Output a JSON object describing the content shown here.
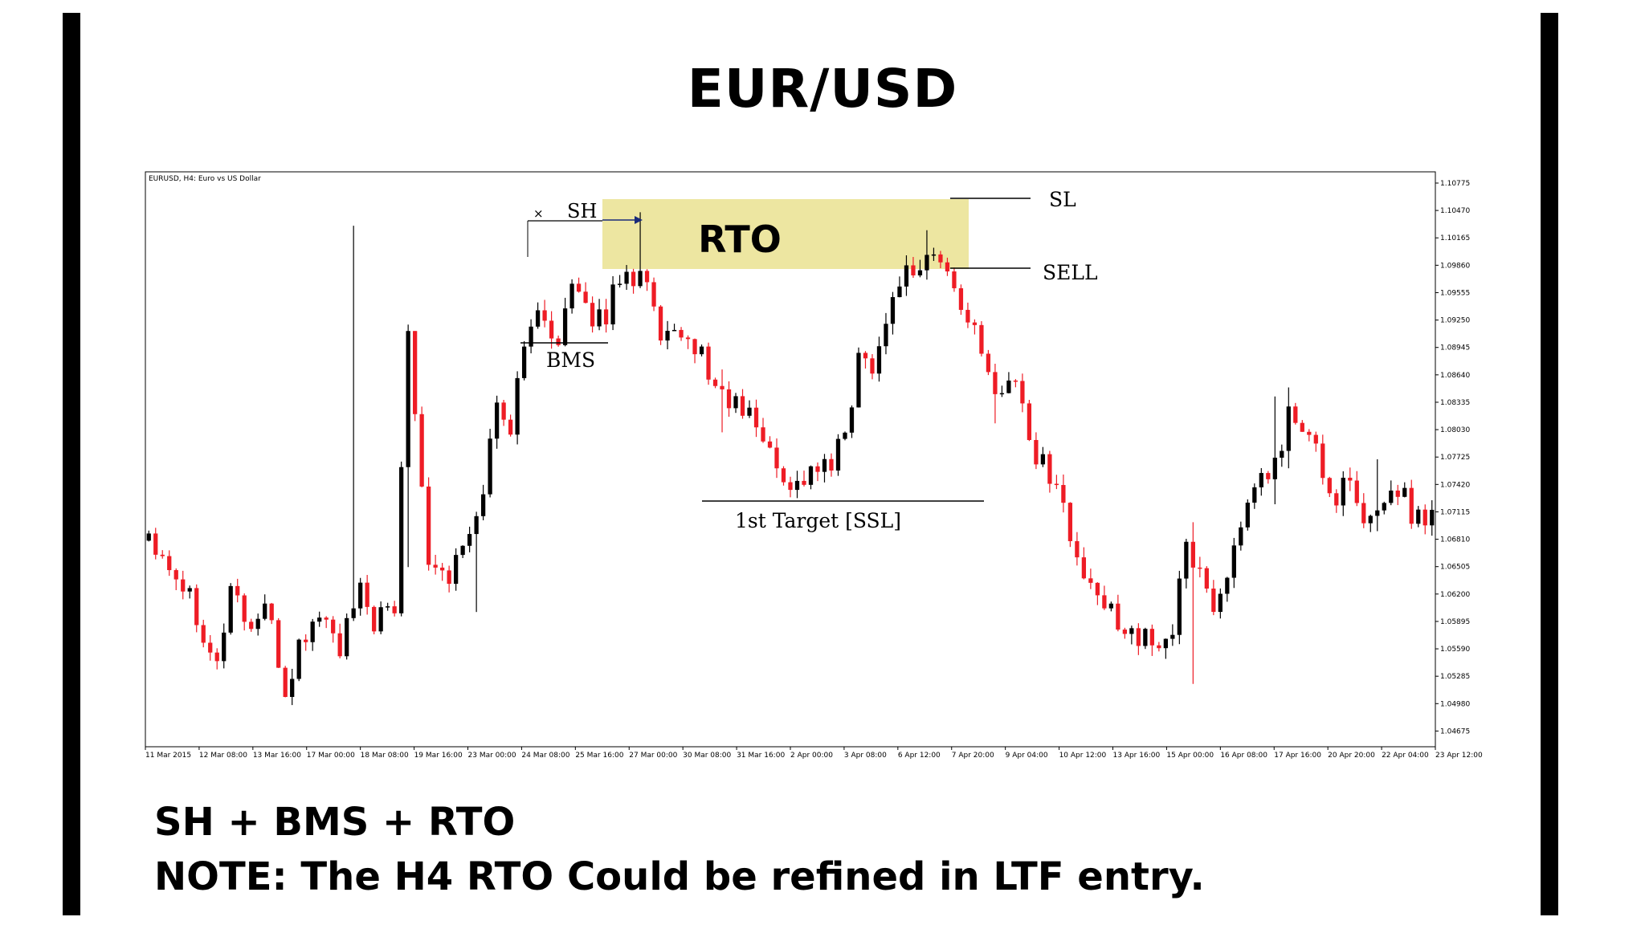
{
  "title": "EUR/USD",
  "captions": {
    "line1": "SH + BMS + RTO",
    "line2": "NOTE: The H4 RTO Could be refined in LTF entry."
  },
  "colors": {
    "bull": "#000000",
    "bear": "#ee1c25",
    "zone": "#ede6a1",
    "frame": "#000000"
  },
  "chart_data": {
    "type": "candlestick",
    "header": "EURUSD, H4:  Euro vs US Dollar",
    "ylim": [
      1.045,
      1.109
    ],
    "yticks": [
      "1.10775",
      "1.10470",
      "1.10165",
      "1.09860",
      "1.09555",
      "1.09250",
      "1.08945",
      "1.08640",
      "1.08335",
      "1.08030",
      "1.07725",
      "1.07420",
      "1.07115",
      "1.06810",
      "1.06505",
      "1.06200",
      "1.05895",
      "1.05590",
      "1.05285",
      "1.04980",
      "1.04675"
    ],
    "xticks": [
      "11 Mar 2015",
      "12 Mar 08:00",
      "13 Mar 16:00",
      "17 Mar 00:00",
      "18 Mar 08:00",
      "19 Mar 16:00",
      "23 Mar 00:00",
      "24 Mar 08:00",
      "25 Mar 16:00",
      "27 Mar 00:00",
      "30 Mar 08:00",
      "31 Mar 16:00",
      "2 Apr 00:00",
      "3 Apr 08:00",
      "6 Apr 12:00",
      "7 Apr 20:00",
      "9 Apr 04:00",
      "10 Apr 12:00",
      "13 Apr 16:00",
      "15 Apr 00:00",
      "16 Apr 08:00",
      "17 Apr 16:00",
      "20 Apr 20:00",
      "22 Apr 04:00",
      "23 Apr 12:00"
    ],
    "anchors": [
      [
        0,
        1.069
      ],
      [
        6,
        1.062
      ],
      [
        10,
        1.054
      ],
      [
        12,
        1.063
      ],
      [
        15,
        1.058
      ],
      [
        17,
        1.061
      ],
      [
        20,
        1.051
      ],
      [
        22,
        1.056
      ],
      [
        25,
        1.06
      ],
      [
        28,
        1.056
      ],
      [
        31,
        1.062
      ],
      [
        33,
        1.059
      ],
      [
        36,
        1.06
      ],
      [
        38,
        1.092
      ],
      [
        41,
        1.066
      ],
      [
        44,
        1.064
      ],
      [
        48,
        1.07
      ],
      [
        51,
        1.083
      ],
      [
        53,
        1.081
      ],
      [
        56,
        1.093
      ],
      [
        60,
        1.091
      ],
      [
        62,
        1.096
      ],
      [
        64,
        1.093
      ],
      [
        67,
        1.093
      ],
      [
        69,
        1.098
      ],
      [
        71,
        1.097
      ],
      [
        72,
        1.099
      ],
      [
        73,
        1.096
      ],
      [
        75,
        1.09
      ],
      [
        78,
        1.09
      ],
      [
        80,
        1.09
      ],
      [
        83,
        1.085
      ],
      [
        86,
        1.083
      ],
      [
        89,
        1.081
      ],
      [
        92,
        1.076
      ],
      [
        95,
        1.074
      ],
      [
        97,
        1.076
      ],
      [
        100,
        1.076
      ],
      [
        102,
        1.08
      ],
      [
        104,
        1.088
      ],
      [
        106,
        1.088
      ],
      [
        108,
        1.092
      ],
      [
        110,
        1.0975
      ],
      [
        113,
        1.0985
      ],
      [
        115,
        1.1
      ],
      [
        118,
        1.096
      ],
      [
        120,
        1.093
      ],
      [
        123,
        1.086
      ],
      [
        125,
        1.085
      ],
      [
        127,
        1.086
      ],
      [
        130,
        1.077
      ],
      [
        133,
        1.075
      ],
      [
        135,
        1.068
      ],
      [
        138,
        1.062
      ],
      [
        141,
        1.06
      ],
      [
        144,
        1.058
      ],
      [
        147,
        1.056
      ],
      [
        150,
        1.058
      ],
      [
        152,
        1.067
      ],
      [
        154,
        1.065
      ],
      [
        156,
        1.06
      ],
      [
        158,
        1.065
      ],
      [
        160,
        1.068
      ],
      [
        162,
        1.074
      ],
      [
        165,
        1.076
      ],
      [
        167,
        1.082
      ],
      [
        169,
        1.08
      ],
      [
        171,
        1.078
      ],
      [
        173,
        1.073
      ],
      [
        176,
        1.074
      ],
      [
        178,
        1.069
      ],
      [
        180,
        1.072
      ],
      [
        183,
        1.074
      ],
      [
        185,
        1.071
      ],
      [
        188,
        1.071
      ]
    ],
    "spikes": [
      [
        30,
        1.103,
        1.059
      ],
      [
        38,
        1.092,
        1.065
      ],
      [
        48,
        1.066,
        1.06
      ],
      [
        72,
        1.1045,
        1.098
      ],
      [
        84,
        1.087,
        1.08
      ],
      [
        114,
        1.1025,
        1.097
      ],
      [
        124,
        1.087,
        1.081
      ],
      [
        153,
        1.07,
        1.052
      ],
      [
        165,
        1.084,
        1.072
      ],
      [
        167,
        1.085,
        1.076
      ],
      [
        180,
        1.077,
        1.069
      ]
    ],
    "annotations": {
      "zone_label": "RTO",
      "sh": "SH",
      "bms": "BMS",
      "sl": "SL",
      "sell": "SELL",
      "target": "1st Target [SSL]",
      "cross": "×"
    }
  }
}
